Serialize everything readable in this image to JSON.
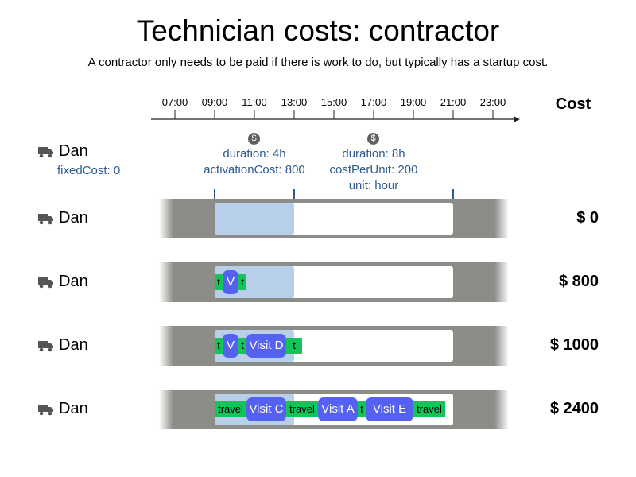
{
  "title": "Technician costs: contractor",
  "subtitle": "A contractor only needs to be paid if there is work to do, but typically has a startup cost.",
  "timeline": {
    "ticks": [
      "07:00",
      "09:00",
      "11:00",
      "13:00",
      "15:00",
      "17:00",
      "19:00",
      "21:00",
      "23:00"
    ]
  },
  "cost_header": "Cost",
  "dollar_icon": "$",
  "vehicle": {
    "name": "Dan",
    "fixed_cost": "fixedCost: 0"
  },
  "periods": [
    {
      "duration": "duration: 4h",
      "activation": "activationCost: 800"
    },
    {
      "duration": "duration: 8h",
      "cost_per_unit": "costPerUnit: 200",
      "unit": "unit: hour"
    }
  ],
  "rows": [
    {
      "name": "Dan",
      "cost": "$ 0",
      "items": []
    },
    {
      "name": "Dan",
      "cost": "$ 800",
      "items": [
        {
          "kind": "travel",
          "label": "t"
        },
        {
          "kind": "visit",
          "label": "V"
        },
        {
          "kind": "travel",
          "label": "t"
        }
      ]
    },
    {
      "name": "Dan",
      "cost": "$ 1000",
      "items": [
        {
          "kind": "travel",
          "label": "t"
        },
        {
          "kind": "visit",
          "label": "V"
        },
        {
          "kind": "travel",
          "label": "t"
        },
        {
          "kind": "visit",
          "label": "Visit D"
        },
        {
          "kind": "travel",
          "label": "t"
        }
      ]
    },
    {
      "name": "Dan",
      "cost": "$ 2400",
      "items": [
        {
          "kind": "travel",
          "label": "travel"
        },
        {
          "kind": "visit",
          "label": "Visit C"
        },
        {
          "kind": "travel",
          "label": "travel"
        },
        {
          "kind": "visit",
          "label": "Visit A"
        },
        {
          "kind": "travel",
          "label": "t"
        },
        {
          "kind": "visit",
          "label": "Visit E"
        },
        {
          "kind": "travel",
          "label": "travel"
        }
      ]
    }
  ],
  "colors": {
    "travel": "#13c459",
    "visit": "#5561f0",
    "contract_period": "#b8cfe9",
    "track": "#8c8c88",
    "info_text": "#2e5a8e"
  }
}
